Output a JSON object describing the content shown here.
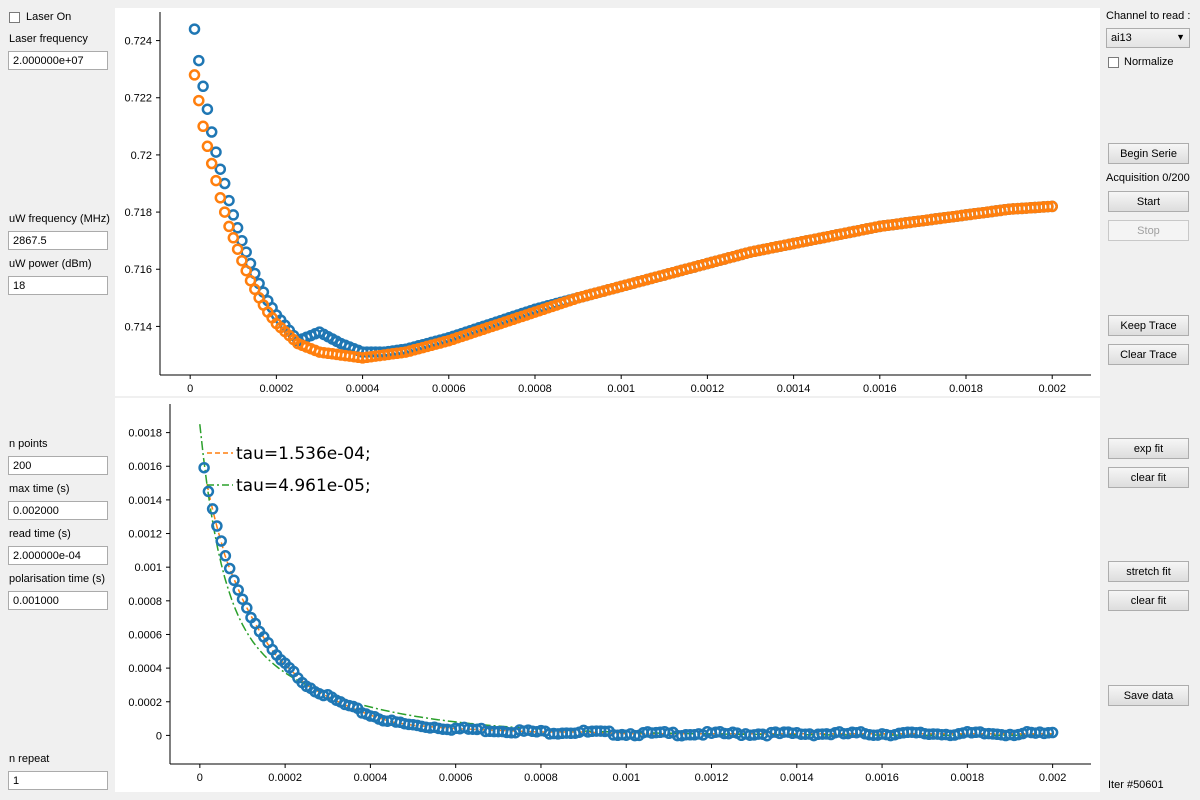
{
  "left_panel": {
    "laser_on_label": "Laser On",
    "laser_on_checked": false,
    "laser_frequency_label": "Laser frequency",
    "laser_frequency_value": "2.000000e+07",
    "uw_frequency_label": "uW frequency (MHz)",
    "uw_frequency_value": "2867.5",
    "uw_power_label": "uW power (dBm)",
    "uw_power_value": "18",
    "n_points_label": "n points",
    "n_points_value": "200",
    "max_time_label": "max time (s)",
    "max_time_value": "0.002000",
    "read_time_label": "read time (s)",
    "read_time_value": "2.000000e-04",
    "polarisation_time_label": "polarisation time (s)",
    "polarisation_time_value": "0.001000",
    "n_repeat_label": "n repeat",
    "n_repeat_value": "1"
  },
  "right_panel": {
    "channel_label": "Channel to read :",
    "channel_selected": "ai13",
    "normalize_label": "Normalize",
    "normalize_checked": false,
    "begin_serie": "Begin Serie",
    "acquisition_status": "Acquisition 0/200",
    "start": "Start",
    "stop": "Stop",
    "keep_trace": "Keep Trace",
    "clear_trace": "Clear Trace",
    "exp_fit": "exp fit",
    "clear_fit_1": "clear fit",
    "stretch_fit": "stretch fit",
    "clear_fit_2": "clear fit",
    "save_data": "Save data",
    "iter_status": "Iter #50601"
  },
  "colors": {
    "blue": "#1f77b4",
    "orange": "#ff7f0e",
    "green": "#2ca02c"
  },
  "chart_data": [
    {
      "type": "scatter",
      "title": "",
      "xlabel": "",
      "ylabel": "",
      "xlim": [
        -7e-05,
        0.00209
      ],
      "ylim": [
        0.7123,
        0.725
      ],
      "xticks": [
        "0",
        "0.0002",
        "0.0004",
        "0.0006",
        "0.0008",
        "0.001",
        "0.0012",
        "0.0014",
        "0.0016",
        "0.0018",
        "0.002"
      ],
      "yticks": [
        "0.714",
        "0.716",
        "0.718",
        "0.72",
        "0.722",
        "0.724"
      ],
      "grid": false,
      "series": [
        {
          "color": "blue",
          "x": [
            1e-05,
            2e-05,
            3e-05,
            4e-05,
            5e-05,
            6e-05,
            7e-05,
            8e-05,
            9e-05,
            0.0001,
            0.00012,
            0.00014,
            0.00016,
            0.00018,
            0.0002,
            0.00025,
            0.0003,
            0.00035,
            0.0004,
            0.00045,
            0.0005,
            0.0006,
            0.0007,
            0.0008,
            0.0009,
            0.001,
            0.0011,
            0.0012,
            0.0013,
            0.0014,
            0.0015,
            0.0016,
            0.0017,
            0.0018,
            0.0019,
            0.002
          ],
          "y": [
            0.7244,
            0.7233,
            0.7224,
            0.7216,
            0.7208,
            0.7201,
            0.7195,
            0.719,
            0.7184,
            0.7179,
            0.717,
            0.7162,
            0.7155,
            0.7149,
            0.7144,
            0.7135,
            0.7138,
            0.7134,
            0.7131,
            0.7131,
            0.7132,
            0.7136,
            0.7141,
            0.7146,
            0.715,
            0.7154,
            0.7158,
            0.7162,
            0.7166,
            0.7169,
            0.7172,
            0.7175,
            0.7177,
            0.7179,
            0.7181,
            0.7182
          ]
        },
        {
          "color": "orange",
          "x": [
            1e-05,
            2e-05,
            3e-05,
            4e-05,
            5e-05,
            6e-05,
            7e-05,
            8e-05,
            9e-05,
            0.0001,
            0.00012,
            0.00014,
            0.00016,
            0.00018,
            0.0002,
            0.00025,
            0.0003,
            0.00035,
            0.0004,
            0.00045,
            0.0005,
            0.0006,
            0.0007,
            0.0008,
            0.0009,
            0.001,
            0.0011,
            0.0012,
            0.0013,
            0.0014,
            0.0015,
            0.0016,
            0.0017,
            0.0018,
            0.0019,
            0.002
          ],
          "y": [
            0.7228,
            0.7219,
            0.721,
            0.7203,
            0.7197,
            0.7191,
            0.7185,
            0.718,
            0.7175,
            0.7171,
            0.7163,
            0.7156,
            0.715,
            0.7145,
            0.7141,
            0.7134,
            0.7131,
            0.713,
            0.7129,
            0.713,
            0.7131,
            0.7135,
            0.714,
            0.7145,
            0.715,
            0.7154,
            0.7158,
            0.7162,
            0.7166,
            0.7169,
            0.7172,
            0.7175,
            0.7177,
            0.7179,
            0.7181,
            0.7182
          ]
        }
      ]
    },
    {
      "type": "scatter",
      "title": "",
      "xlabel": "",
      "ylabel": "",
      "xlim": [
        -7e-05,
        0.00209
      ],
      "ylim": [
        -0.00017,
        0.00197
      ],
      "xticks": [
        "0",
        "0.0002",
        "0.0004",
        "0.0006",
        "0.0008",
        "0.001",
        "0.0012",
        "0.0014",
        "0.0016",
        "0.0018",
        "0.002"
      ],
      "yticks": [
        "0",
        "0.0002",
        "0.0004",
        "0.0006",
        "0.0008",
        "0.001",
        "0.0012",
        "0.0014",
        "0.0016",
        "0.0018"
      ],
      "grid": false,
      "series": [
        {
          "color": "blue",
          "x": [
            1e-05,
            2e-05,
            3e-05,
            4e-05,
            5e-05,
            6e-05,
            7e-05,
            8e-05,
            9e-05,
            0.0001,
            0.00012,
            0.00014,
            0.00016,
            0.00018,
            0.0002,
            0.00025,
            0.0003,
            0.00035,
            0.0004,
            0.00045,
            0.0005,
            0.0006,
            0.0007,
            0.0008,
            0.0009,
            0.001,
            0.0011,
            0.0012,
            0.0013,
            0.0014,
            0.0015,
            0.0016,
            0.0017,
            0.0018,
            0.0019,
            0.002
          ],
          "y": [
            0.00158,
            0.00145,
            0.00134,
            0.00124,
            0.00115,
            0.00106,
            0.00099,
            0.00093,
            0.00087,
            0.00081,
            0.00071,
            0.00062,
            0.00054,
            0.00047,
            0.00042,
            0.0003,
            0.00023,
            0.00017,
            0.00012,
            8e-05,
            6e-05,
            4e-05,
            3e-05,
            2e-05,
            2e-05,
            1e-05,
            1e-05,
            1e-05,
            1e-05,
            1e-05,
            1e-05,
            1e-05,
            1e-05,
            1e-05,
            1e-05,
            1e-05
          ]
        }
      ],
      "fits": [
        {
          "color": "orange",
          "style": "dashed",
          "label": "tau=1.536e-04;",
          "tau": 0.0001536
        },
        {
          "color": "green",
          "style": "dashdot",
          "label": "tau=4.961e-05;",
          "tau": 4.961e-05
        }
      ]
    }
  ]
}
